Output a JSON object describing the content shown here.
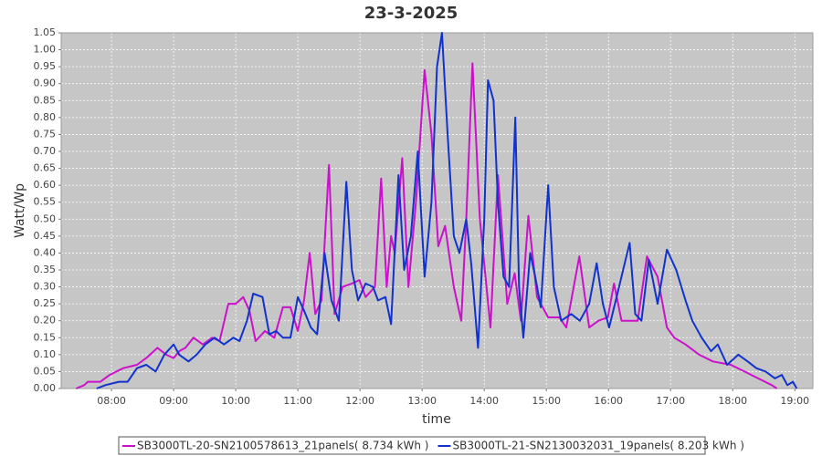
{
  "chart_data": {
    "type": "line",
    "title": "23-3-2025",
    "x_label": "time",
    "y_label": "Watt/Wp",
    "xlim": [
      7.19,
      19.29
    ],
    "ylim": [
      0,
      1.05
    ],
    "grid": true,
    "background": "#c6c6c6",
    "xticks": [
      {
        "value": 8,
        "label": "08:00"
      },
      {
        "value": 9,
        "label": "09:00"
      },
      {
        "value": 10,
        "label": "10:00"
      },
      {
        "value": 11,
        "label": "11:00"
      },
      {
        "value": 12,
        "label": "12:00"
      },
      {
        "value": 13,
        "label": "13:00"
      },
      {
        "value": 14,
        "label": "14:00"
      },
      {
        "value": 15,
        "label": "15:00"
      },
      {
        "value": 16,
        "label": "16:00"
      },
      {
        "value": 17,
        "label": "17:00"
      },
      {
        "value": 18,
        "label": "18:00"
      },
      {
        "value": 19,
        "label": "19:00"
      }
    ],
    "yticks": [
      {
        "value": 0,
        "label": "0.00"
      },
      {
        "value": 0.05,
        "label": "0.05"
      },
      {
        "value": 0.1,
        "label": "0.10"
      },
      {
        "value": 0.15,
        "label": "0.15"
      },
      {
        "value": 0.2,
        "label": "0.20"
      },
      {
        "value": 0.25,
        "label": "0.25"
      },
      {
        "value": 0.3,
        "label": "0.30"
      },
      {
        "value": 0.35,
        "label": "0.35"
      },
      {
        "value": 0.4,
        "label": "0.40"
      },
      {
        "value": 0.45,
        "label": "0.45"
      },
      {
        "value": 0.5,
        "label": "0.50"
      },
      {
        "value": 0.55,
        "label": "0.55"
      },
      {
        "value": 0.6,
        "label": "0.60"
      },
      {
        "value": 0.65,
        "label": "0.65"
      },
      {
        "value": 0.7,
        "label": "0.70"
      },
      {
        "value": 0.75,
        "label": "0.75"
      },
      {
        "value": 0.8,
        "label": "0.80"
      },
      {
        "value": 0.85,
        "label": "0.85"
      },
      {
        "value": 0.9,
        "label": "0.90"
      },
      {
        "value": 0.95,
        "label": "0.95"
      },
      {
        "value": 1,
        "label": "1.00"
      },
      {
        "value": 1.05,
        "label": "1.05"
      }
    ],
    "series": [
      {
        "name": "SB3000TL-20-SN2100578613_21panels( 8.734 kWh )",
        "color": "#cc11cc",
        "x": [
          7.43,
          7.56,
          7.62,
          7.82,
          7.97,
          8.19,
          8.41,
          8.56,
          8.74,
          8.88,
          9.0,
          9.09,
          9.19,
          9.32,
          9.47,
          9.62,
          9.74,
          9.88,
          10.0,
          10.12,
          10.22,
          10.32,
          10.47,
          10.62,
          10.76,
          10.88,
          11.0,
          11.1,
          11.19,
          11.28,
          11.38,
          11.5,
          11.59,
          11.72,
          11.87,
          11.99,
          12.09,
          12.24,
          12.34,
          12.43,
          12.5,
          12.56,
          12.68,
          12.78,
          12.9,
          13.04,
          13.15,
          13.26,
          13.37,
          13.51,
          13.63,
          13.71,
          13.81,
          13.93,
          14.1,
          14.22,
          14.37,
          14.49,
          14.59,
          14.71,
          14.85,
          15.03,
          15.21,
          15.32,
          15.53,
          15.69,
          15.84,
          15.99,
          16.09,
          16.21,
          16.47,
          16.62,
          16.79,
          16.94,
          17.06,
          17.24,
          17.46,
          17.68,
          17.97,
          18.19,
          18.41,
          18.63,
          18.71
        ],
        "values": [
          0,
          0.01,
          0.02,
          0.02,
          0.04,
          0.06,
          0.07,
          0.09,
          0.12,
          0.1,
          0.09,
          0.11,
          0.12,
          0.15,
          0.13,
          0.15,
          0.14,
          0.25,
          0.25,
          0.27,
          0.23,
          0.14,
          0.17,
          0.15,
          0.24,
          0.24,
          0.17,
          0.26,
          0.4,
          0.22,
          0.26,
          0.66,
          0.22,
          0.3,
          0.31,
          0.32,
          0.27,
          0.3,
          0.62,
          0.3,
          0.45,
          0.4,
          0.68,
          0.3,
          0.55,
          0.94,
          0.75,
          0.42,
          0.48,
          0.3,
          0.2,
          0.5,
          0.96,
          0.5,
          0.18,
          0.63,
          0.25,
          0.34,
          0.2,
          0.51,
          0.27,
          0.21,
          0.21,
          0.18,
          0.39,
          0.18,
          0.2,
          0.21,
          0.31,
          0.2,
          0.2,
          0.39,
          0.33,
          0.18,
          0.15,
          0.13,
          0.1,
          0.08,
          0.07,
          0.05,
          0.03,
          0.01,
          0
        ]
      },
      {
        "name": "SB3000TL-21-SN2130032031_19panels( 8.203 kWh )",
        "color": "#1133cc",
        "x": [
          7.76,
          7.9,
          8.12,
          8.26,
          8.41,
          8.56,
          8.71,
          8.85,
          9.0,
          9.09,
          9.24,
          9.37,
          9.51,
          9.66,
          9.81,
          9.96,
          10.06,
          10.18,
          10.28,
          10.43,
          10.54,
          10.65,
          10.76,
          10.88,
          11.0,
          11.1,
          11.21,
          11.31,
          11.43,
          11.54,
          11.66,
          11.78,
          11.87,
          11.97,
          12.09,
          12.21,
          12.29,
          12.41,
          12.5,
          12.62,
          12.71,
          12.82,
          12.93,
          13.04,
          13.15,
          13.24,
          13.32,
          13.41,
          13.51,
          13.6,
          13.71,
          13.79,
          13.9,
          14.0,
          14.06,
          14.15,
          14.22,
          14.31,
          14.4,
          14.5,
          14.56,
          14.63,
          14.74,
          14.82,
          14.91,
          15.03,
          15.12,
          15.24,
          15.4,
          15.54,
          15.69,
          15.81,
          15.91,
          16.01,
          16.13,
          16.34,
          16.43,
          16.53,
          16.65,
          16.79,
          16.94,
          17.09,
          17.24,
          17.35,
          17.5,
          17.65,
          17.76,
          17.91,
          18.09,
          18.24,
          18.38,
          18.53,
          18.68,
          18.79,
          18.88,
          18.97,
          19.03
        ],
        "values": [
          0,
          0.01,
          0.02,
          0.02,
          0.06,
          0.07,
          0.05,
          0.1,
          0.13,
          0.1,
          0.08,
          0.1,
          0.13,
          0.15,
          0.13,
          0.15,
          0.14,
          0.2,
          0.28,
          0.27,
          0.16,
          0.17,
          0.15,
          0.15,
          0.27,
          0.23,
          0.18,
          0.16,
          0.4,
          0.26,
          0.2,
          0.61,
          0.35,
          0.26,
          0.31,
          0.3,
          0.26,
          0.27,
          0.19,
          0.63,
          0.35,
          0.45,
          0.7,
          0.33,
          0.55,
          0.95,
          1.05,
          0.75,
          0.45,
          0.4,
          0.5,
          0.37,
          0.12,
          0.5,
          0.91,
          0.85,
          0.55,
          0.33,
          0.3,
          0.8,
          0.3,
          0.15,
          0.4,
          0.33,
          0.24,
          0.6,
          0.3,
          0.2,
          0.22,
          0.2,
          0.25,
          0.37,
          0.25,
          0.18,
          0.27,
          0.43,
          0.22,
          0.2,
          0.38,
          0.25,
          0.41,
          0.35,
          0.26,
          0.2,
          0.15,
          0.11,
          0.13,
          0.07,
          0.1,
          0.08,
          0.06,
          0.05,
          0.03,
          0.04,
          0.01,
          0.02,
          0
        ]
      }
    ]
  }
}
